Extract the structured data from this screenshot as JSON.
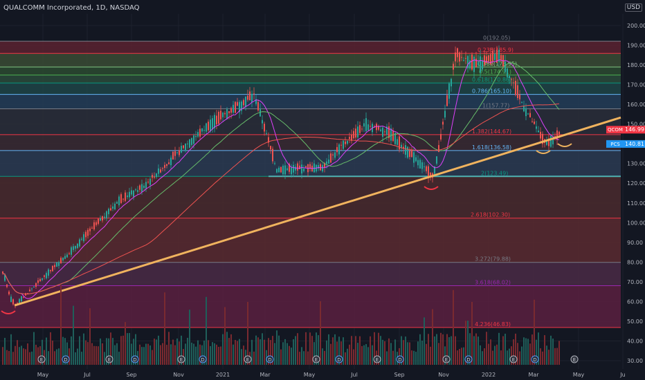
{
  "header": {
    "title": "QUALCOMM Incorporated, 1D, NASDAQ",
    "currency": "USD"
  },
  "chart_data": {
    "type": "candlestick",
    "symbol": "QCOM",
    "interval": "1D",
    "exchange": "NASDAQ",
    "currency": "USD",
    "x_ticks": [
      "May",
      "Jul",
      "Sep",
      "Nov",
      "2021",
      "Mar",
      "May",
      "Jul",
      "Sep",
      "Nov",
      "2022",
      "Mar",
      "May",
      "Ju"
    ],
    "y_range": [
      30,
      205
    ],
    "y_ticks": [
      30,
      40,
      50,
      60,
      70,
      80,
      90,
      100,
      110,
      120,
      130,
      140,
      150,
      160,
      170,
      180,
      190,
      200
    ],
    "grid": true,
    "fib_levels": [
      {
        "ratio": "0",
        "price": 192.05,
        "label": "0(192.05)",
        "color": "#787b86"
      },
      {
        "ratio": "0.236",
        "price": 185.9,
        "label": "0.236(185.9)",
        "color": "#f23645"
      },
      {
        "ratio": "0.382",
        "price": 178.95,
        "label": "0.382(178.95)",
        "color": "#81c784"
      },
      {
        "ratio": "0.5",
        "price": 174.91,
        "label": "0.5(174.91)",
        "color": "#4caf50"
      },
      {
        "ratio": "0.618",
        "price": 170.86,
        "label": "0.618(170.86)",
        "color": "#089981"
      },
      {
        "ratio": "0.786",
        "price": 165.1,
        "label": "0.786(165.10)",
        "color": "#64b5f6"
      },
      {
        "ratio": "1",
        "price": 157.77,
        "label": "1(157.77)",
        "color": "#787b86"
      },
      {
        "ratio": "1.382",
        "price": 144.67,
        "label": "1.382(144.67)",
        "color": "#f23645"
      },
      {
        "ratio": "1.618",
        "price": 136.58,
        "label": "1.618(136.58)",
        "color": "#64b5f6"
      },
      {
        "ratio": "2",
        "price": 123.49,
        "label": "2(123.49)",
        "color": "#089981"
      },
      {
        "ratio": "2.618",
        "price": 102.3,
        "label": "2.618(102.30)",
        "color": "#f23645"
      },
      {
        "ratio": "3.272",
        "price": 79.88,
        "label": "3.272(79.88)",
        "color": "#787b86"
      },
      {
        "ratio": "3.618",
        "price": 68.02,
        "label": "3.618(68.02)",
        "color": "#9c27b0"
      },
      {
        "ratio": "4.236",
        "price": 46.83,
        "label": "4.236(46.83)",
        "color": "#f23645"
      }
    ],
    "fib_zone_colors": [
      "#5b2230",
      "#3a4b34",
      "#2b4a30",
      "#2a4a3a",
      "#1f4447",
      "#233d58",
      "#2a2e39",
      "#3a2a33",
      "#2b3b52",
      "#4a2a2e",
      "#5a2a30",
      "#4a2a45",
      "#5a2040",
      "#6a1a2a"
    ],
    "price_labels": [
      {
        "symbol": "QCOM",
        "value": 146.99,
        "color": "#f23645"
      },
      {
        "symbol": "PCS",
        "value": 140.81,
        "color": "#2196f3"
      }
    ],
    "key_points": [
      {
        "date": "2020-03-23",
        "close": 58.0
      },
      {
        "date": "2020-06",
        "close": 88.0
      },
      {
        "date": "2020-08",
        "close": 112.0
      },
      {
        "date": "2020-09",
        "close": 118.0
      },
      {
        "date": "2020-11",
        "close": 140.0
      },
      {
        "date": "2020-12",
        "close": 150.0
      },
      {
        "date": "2021-02",
        "close": 165.0
      },
      {
        "date": "2021-03",
        "close": 127.0
      },
      {
        "date": "2021-05",
        "close": 128.0
      },
      {
        "date": "2021-06",
        "close": 140.0
      },
      {
        "date": "2021-07",
        "close": 150.0
      },
      {
        "date": "2021-08",
        "close": 146.0
      },
      {
        "date": "2021-10",
        "close": 123.0
      },
      {
        "date": "2021-11",
        "close": 185.0
      },
      {
        "date": "2021-12",
        "close": 180.0
      },
      {
        "date": "2022-01",
        "close": 185.0
      },
      {
        "date": "2022-02",
        "close": 160.0
      },
      {
        "date": "2022-03",
        "close": 140.0
      },
      {
        "date": "2022-04",
        "close": 146.99
      }
    ],
    "trendline": {
      "from": {
        "date": "2020-03-23",
        "price": 58.0
      },
      "to": {
        "date": "2022-06",
        "price": 152.0
      },
      "color": "#f0b35e"
    },
    "support_line": {
      "price": 123.49,
      "color": "#4fb3b3"
    },
    "event_markers": [
      "E",
      "D",
      "E",
      "D",
      "E",
      "D",
      "E",
      "D",
      "E",
      "D",
      "E",
      "D",
      "E",
      "D",
      "E",
      "D",
      "E"
    ]
  }
}
